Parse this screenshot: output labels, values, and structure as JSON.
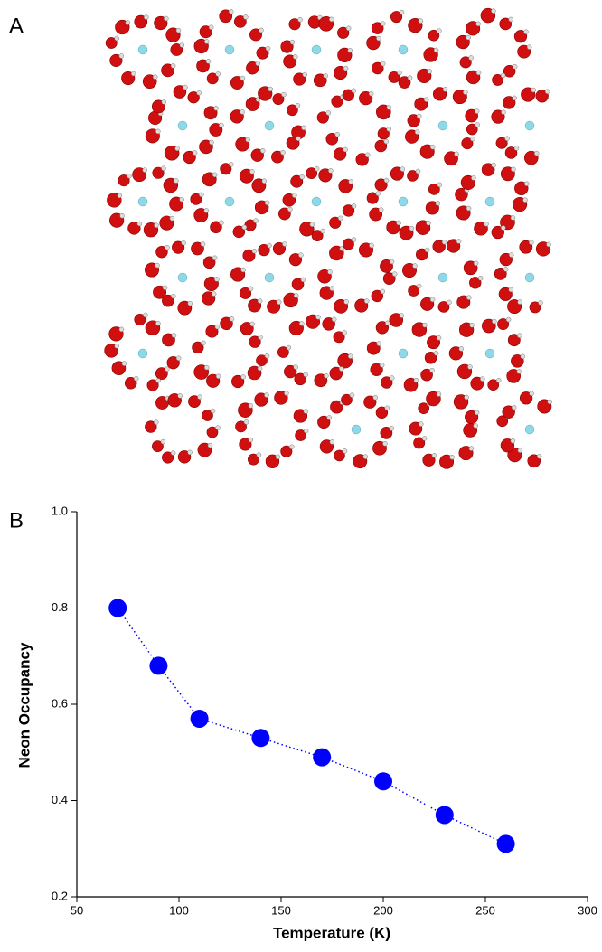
{
  "panel_labels": [
    "A",
    "B"
  ],
  "chart_data": {
    "type": "scatter",
    "x_label": "Temperature (K)",
    "y_label": "Neon Occupancy",
    "x": [
      70,
      90,
      110,
      140,
      170,
      200,
      230,
      260
    ],
    "series": [
      {
        "color": "#0000ff",
        "values": [
          0.8,
          0.68,
          0.57,
          0.53,
          0.49,
          0.44,
          0.37,
          0.31
        ]
      }
    ],
    "connect": "dotted",
    "xlim": [
      50,
      300
    ],
    "xticks": [
      50,
      100,
      150,
      200,
      250,
      300
    ],
    "ylim": [
      0.2,
      1.0
    ],
    "yticks": [
      0.2,
      0.4,
      0.6,
      0.8,
      {
        "value": 1.0,
        "label": "1.0"
      }
    ]
  }
}
